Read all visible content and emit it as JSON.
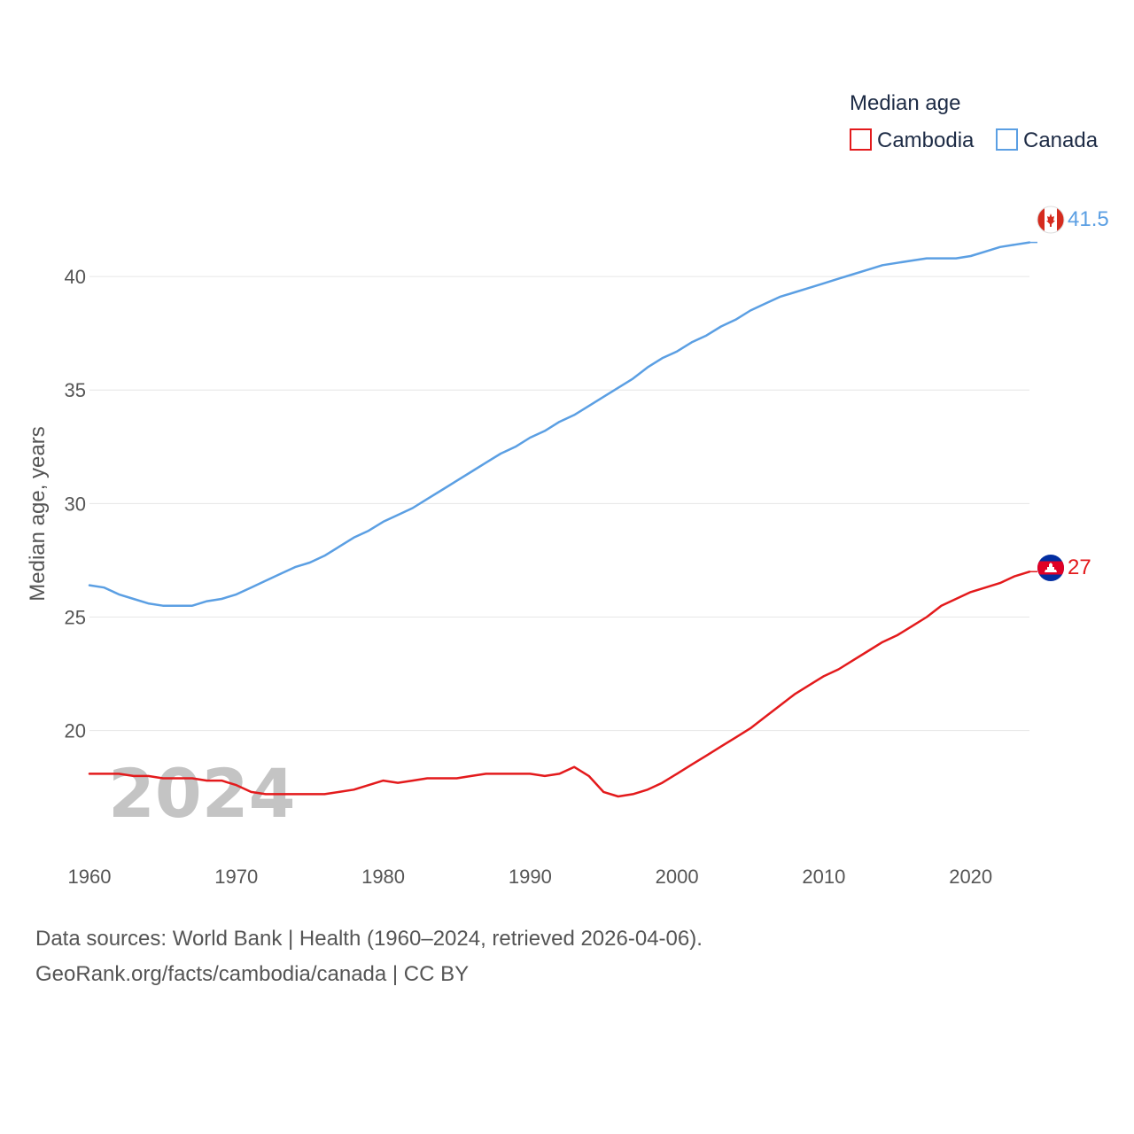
{
  "chart_data": {
    "type": "line",
    "legend_title": "Median age",
    "ylabel": "Median age, years",
    "xlabel": "",
    "year_label": "2024",
    "xlim": [
      1960,
      2024
    ],
    "ylim": [
      15.5,
      42.5
    ],
    "x_ticks": [
      1960,
      1970,
      1980,
      1990,
      2000,
      2010,
      2020
    ],
    "y_ticks": [
      20,
      25,
      30,
      35,
      40
    ],
    "grid": true,
    "legend_position": "top-right",
    "x": [
      1960,
      1961,
      1962,
      1963,
      1964,
      1965,
      1966,
      1967,
      1968,
      1969,
      1970,
      1971,
      1972,
      1973,
      1974,
      1975,
      1976,
      1977,
      1978,
      1979,
      1980,
      1981,
      1982,
      1983,
      1984,
      1985,
      1986,
      1987,
      1988,
      1989,
      1990,
      1991,
      1992,
      1993,
      1994,
      1995,
      1996,
      1997,
      1998,
      1999,
      2000,
      2001,
      2002,
      2003,
      2004,
      2005,
      2006,
      2007,
      2008,
      2009,
      2010,
      2011,
      2012,
      2013,
      2014,
      2015,
      2016,
      2017,
      2018,
      2019,
      2020,
      2021,
      2022,
      2023,
      2024
    ],
    "series": [
      {
        "name": "Cambodia",
        "color": "#e31a1c",
        "end_label": "27",
        "flag": "cambodia-flag",
        "values": [
          18.1,
          18.1,
          18.1,
          18.0,
          18.0,
          17.9,
          17.9,
          17.9,
          17.8,
          17.8,
          17.6,
          17.3,
          17.2,
          17.2,
          17.2,
          17.2,
          17.2,
          17.3,
          17.4,
          17.6,
          17.8,
          17.7,
          17.8,
          17.9,
          17.9,
          17.9,
          18.0,
          18.1,
          18.1,
          18.1,
          18.1,
          18.0,
          18.1,
          18.4,
          18.0,
          17.3,
          17.1,
          17.2,
          17.4,
          17.7,
          18.1,
          18.5,
          18.9,
          19.3,
          19.7,
          20.1,
          20.6,
          21.1,
          21.6,
          22.0,
          22.4,
          22.7,
          23.1,
          23.5,
          23.9,
          24.2,
          24.6,
          25.0,
          25.5,
          25.8,
          26.1,
          26.3,
          26.5,
          26.8,
          27.0
        ]
      },
      {
        "name": "Canada",
        "color": "#5b9fe3",
        "end_label": "41.5",
        "flag": "canada-flag",
        "values": [
          26.4,
          26.3,
          26.0,
          25.8,
          25.6,
          25.5,
          25.5,
          25.5,
          25.7,
          25.8,
          26.0,
          26.3,
          26.6,
          26.9,
          27.2,
          27.4,
          27.7,
          28.1,
          28.5,
          28.8,
          29.2,
          29.5,
          29.8,
          30.2,
          30.6,
          31.0,
          31.4,
          31.8,
          32.2,
          32.5,
          32.9,
          33.2,
          33.6,
          33.9,
          34.3,
          34.7,
          35.1,
          35.5,
          36.0,
          36.4,
          36.7,
          37.1,
          37.4,
          37.8,
          38.1,
          38.5,
          38.8,
          39.1,
          39.3,
          39.5,
          39.7,
          39.9,
          40.1,
          40.3,
          40.5,
          40.6,
          40.7,
          40.8,
          40.8,
          40.8,
          40.9,
          41.1,
          41.3,
          41.4,
          41.5
        ]
      }
    ]
  },
  "footer": {
    "sources": "Data sources: World Bank | Health (1960–2024, retrieved 2026-04-06).",
    "credit": "GeoRank.org/facts/cambodia/canada | CC BY"
  }
}
